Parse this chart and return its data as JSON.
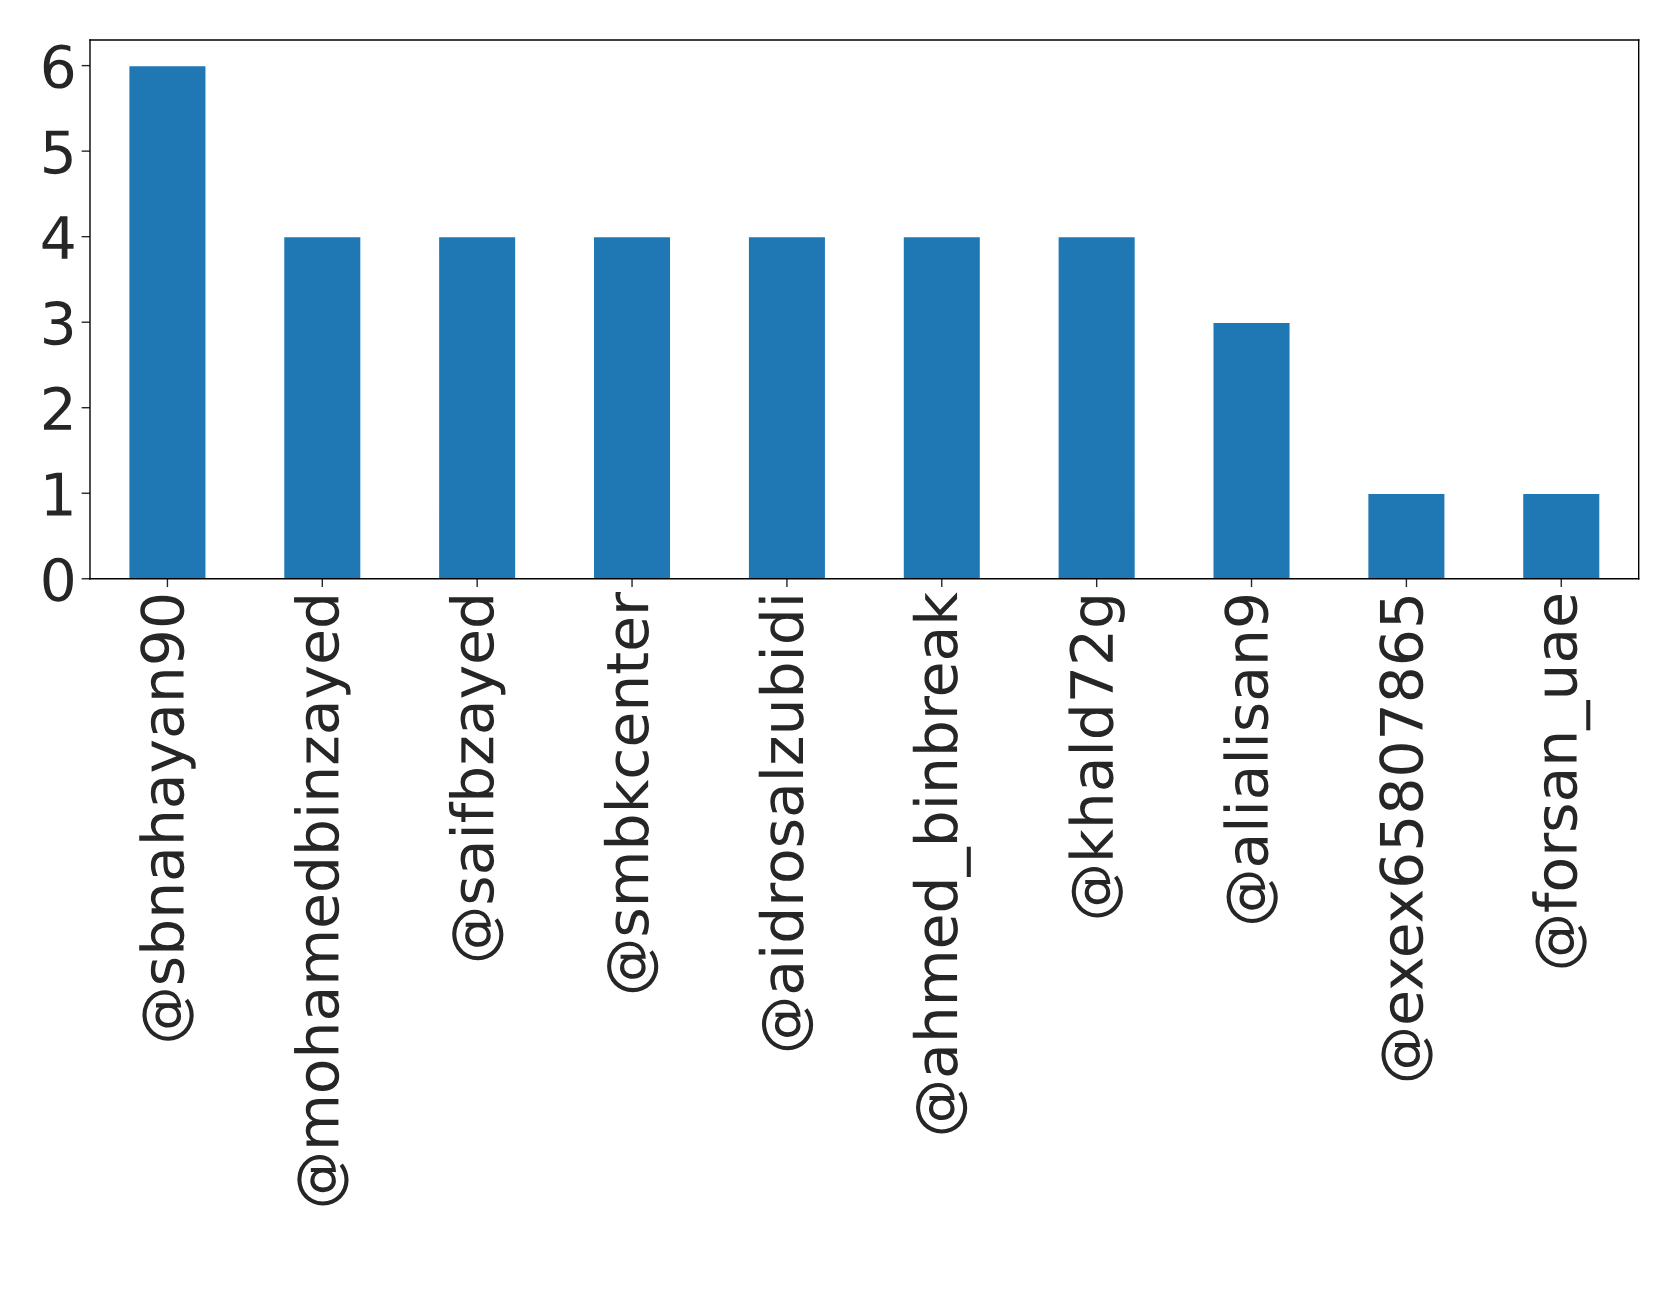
{
  "chart_data": {
    "type": "bar",
    "categories": [
      "@sbnahayan90",
      "@mohamedbinzayed",
      "@saifbzayed",
      "@smbkcenter",
      "@aidrosalzubidi",
      "@ahmed_binbreak",
      "@khald72g",
      "@alialisan9",
      "@exex65807865",
      "@forsan_uae"
    ],
    "values": [
      6,
      4,
      4,
      4,
      4,
      4,
      4,
      3,
      1,
      1
    ],
    "color": "#1f77b4",
    "ylim": [
      0,
      6.3
    ],
    "yticks": [
      0,
      1,
      2,
      3,
      4,
      5,
      6
    ],
    "grid": false
  }
}
